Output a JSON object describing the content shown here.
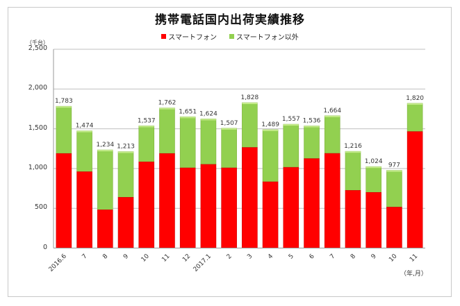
{
  "title": "携帯電話国内出荷実績推移",
  "legend": {
    "items": [
      {
        "label": "スマートフォン",
        "color": "#ff0000"
      },
      {
        "label": "スマートフォン以外",
        "color": "#92d050"
      }
    ]
  },
  "axes": {
    "y_unit": "（千台）",
    "x_unit": "（年,月）",
    "y_ticks": [
      "0",
      "500",
      "1,000",
      "1,500",
      "2,000",
      "2,500"
    ]
  },
  "colors": {
    "smartphone": "#ff0000",
    "other": "#92d050",
    "grid": "#bfbfbf",
    "frame": "#c8c8c8"
  },
  "chart_data": {
    "type": "bar",
    "stacked": true,
    "title": "携帯電話国内出荷実績推移",
    "xlabel": "（年,月）",
    "ylabel": "（千台）",
    "ylim": [
      0,
      2500
    ],
    "y_tick_step": 500,
    "grid": true,
    "legend_position": "top",
    "categories": [
      "2016.6",
      "7",
      "8",
      "9",
      "10",
      "11",
      "12",
      "2017.1",
      "2",
      "3",
      "4",
      "5",
      "6",
      "7",
      "8",
      "9",
      "10",
      "11"
    ],
    "totals": [
      1783,
      1474,
      1234,
      1213,
      1537,
      1762,
      1651,
      1624,
      1507,
      1828,
      1489,
      1557,
      1536,
      1664,
      1216,
      1024,
      977,
      1820
    ],
    "total_labels": [
      "1,783",
      "1,474",
      "1,234",
      "1,213",
      "1,537",
      "1,762",
      "1,651",
      "1,624",
      "1,507",
      "1,828",
      "1,489",
      "1,557",
      "1,536",
      "1,664",
      "1,216",
      "1,024",
      "977",
      "1,820"
    ],
    "series": [
      {
        "name": "スマートフォン",
        "color": "#ff0000",
        "values": [
          1189,
          960,
          481,
          638,
          1084,
          1189,
          1008,
          1052,
          1008,
          1265,
          833,
          1015,
          1125,
          1190,
          725,
          700,
          515,
          1465
        ]
      },
      {
        "name": "スマートフォン以外",
        "color": "#92d050",
        "values": [
          594,
          514,
          753,
          575,
          453,
          573,
          643,
          572,
          499,
          563,
          656,
          542,
          411,
          474,
          491,
          324,
          462,
          355
        ]
      }
    ]
  }
}
